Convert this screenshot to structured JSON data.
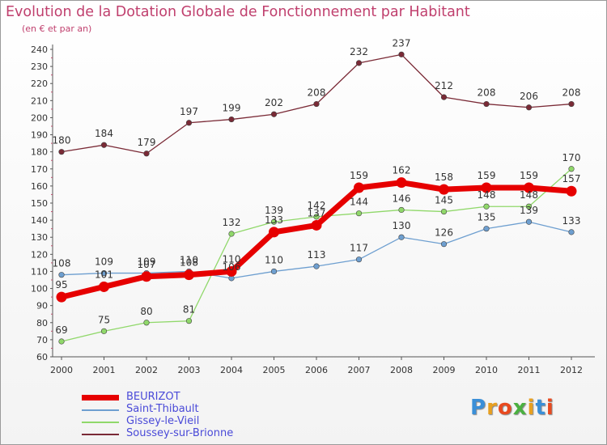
{
  "title": "Evolution de la Dotation Globale de Fonctionnement par Habitant",
  "subtitle": "(en € et par an)",
  "logo": {
    "text": "Proxiti"
  },
  "chart_data": {
    "type": "line",
    "x": [
      "2000",
      "2001",
      "2002",
      "2003",
      "2004",
      "2005",
      "2006",
      "2007",
      "2008",
      "2009",
      "2010",
      "2011",
      "2012"
    ],
    "ylim": [
      60,
      240
    ],
    "ytick_step": 10,
    "grid": false,
    "legend_position": "bottom-left",
    "series": [
      {
        "name": "BEURIZOT",
        "color": "#e60000",
        "values": [
          95,
          101,
          107,
          108,
          110,
          133,
          137,
          159,
          162,
          158,
          159,
          159,
          157
        ]
      },
      {
        "name": "Saint-Thibault",
        "color": "#6e9fd0",
        "values": [
          108,
          109,
          109,
          110,
          106,
          110,
          113,
          117,
          130,
          126,
          135,
          139,
          133
        ]
      },
      {
        "name": "Gissey-le-Vieil",
        "color": "#90d86a",
        "values": [
          69,
          75,
          80,
          81,
          132,
          139,
          142,
          144,
          146,
          145,
          148,
          148,
          170
        ]
      },
      {
        "name": "Soussey-sur-Brionne",
        "color": "#7a2a36",
        "values": [
          180,
          184,
          179,
          197,
          199,
          202,
          208,
          232,
          237,
          212,
          208,
          206,
          208
        ]
      }
    ]
  }
}
